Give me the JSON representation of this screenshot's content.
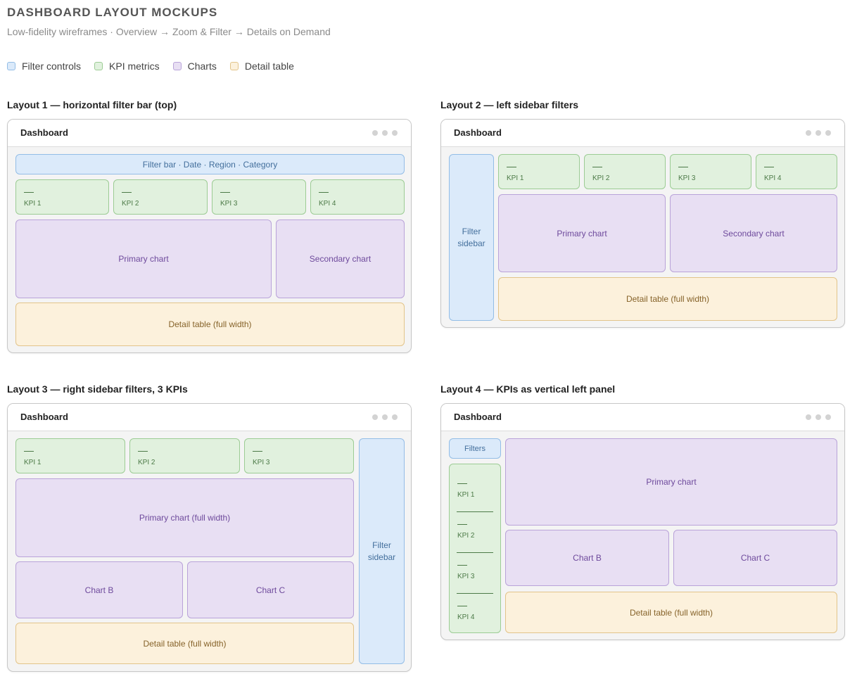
{
  "page": {
    "title": "DASHBOARD LAYOUT MOCKUPS",
    "subtitle": "Low-fidelity wireframes · Overview → Zoom & Filter → Details on Demand"
  },
  "legend": [
    {
      "label": "Filter controls",
      "color": "#dbeafa"
    },
    {
      "label": "KPI metrics",
      "color": "#e1f1de"
    },
    {
      "label": "Charts",
      "color": "#e8dff3"
    },
    {
      "label": "Detail table",
      "color": "#fcf1dc"
    }
  ],
  "colors": {
    "filter": "#dbeafa",
    "kpi": "#e1f1de",
    "chart": "#e8dff3",
    "detail": "#fcf1dc"
  },
  "kpi_value_placeholder": "—",
  "layouts": [
    {
      "title": "Layout 1 — horizontal filter bar (top)",
      "window_title": "Dashboard",
      "filter_label": "Filter bar · Date · Region · Category",
      "kpis": [
        "KPI 1",
        "KPI 2",
        "KPI 3",
        "KPI 4"
      ],
      "primary_chart": "Primary chart",
      "secondary_chart": "Secondary chart",
      "detail_table": "Detail table (full width)"
    },
    {
      "title": "Layout 2 — left sidebar filters",
      "window_title": "Dashboard",
      "filter_label": "Filter sidebar",
      "kpis": [
        "KPI 1",
        "KPI 2",
        "KPI 3",
        "KPI 4"
      ],
      "primary_chart": "Primary chart",
      "secondary_chart": "Secondary chart",
      "detail_table": "Detail table (full width)"
    },
    {
      "title": "Layout 3 — right sidebar filters, 3 KPIs",
      "window_title": "Dashboard",
      "filter_label": "Filter sidebar",
      "kpis": [
        "KPI 1",
        "KPI 2",
        "KPI 3"
      ],
      "primary_chart": "Primary chart (full width)",
      "chart_b": "Chart B",
      "chart_c": "Chart C",
      "detail_table": "Detail table (full width)"
    },
    {
      "title": "Layout 4 — KPIs as vertical left panel",
      "window_title": "Dashboard",
      "filter_label": "Filters",
      "kpis": [
        "KPI 1",
        "KPI 2",
        "KPI 3",
        "KPI 4"
      ],
      "primary_chart": "Primary chart",
      "chart_b": "Chart B",
      "chart_c": "Chart C",
      "detail_table": "Detail table (full width)"
    }
  ]
}
